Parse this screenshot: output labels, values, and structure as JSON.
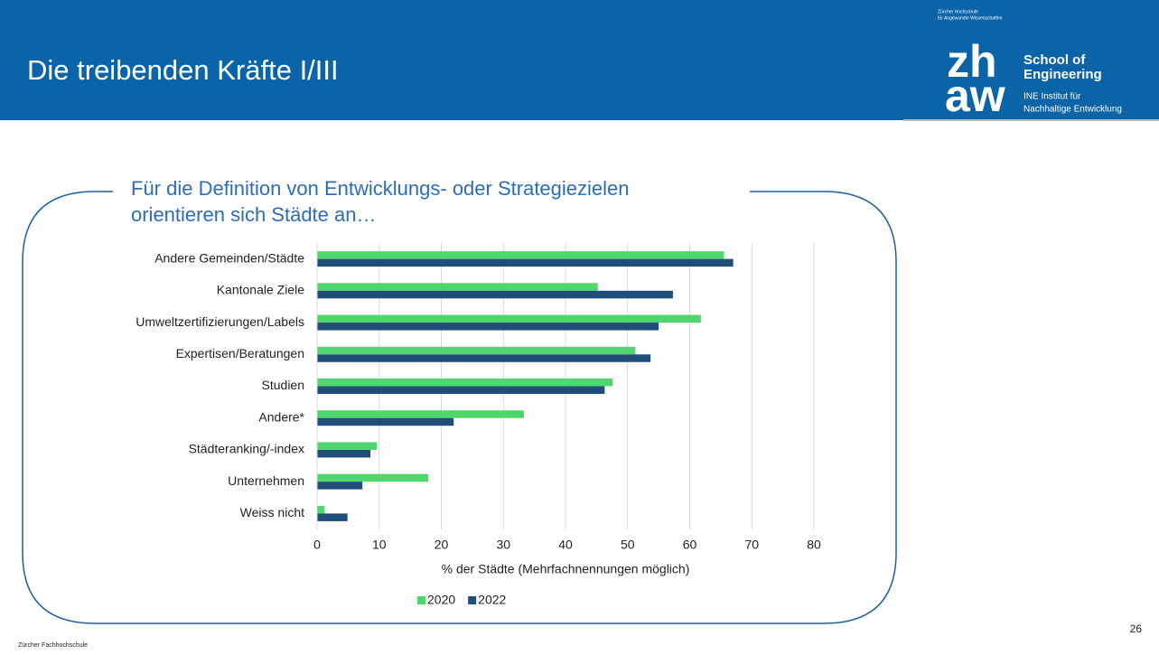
{
  "header": {
    "title": "Die treibenden Kräfte I/III",
    "institution": [
      "Zürcher Hochschule",
      "für Angewandte Wissenschaften"
    ],
    "logo": [
      "zh",
      "aw"
    ],
    "school": [
      "School of",
      "Engineering"
    ],
    "institute": [
      "INE Institut für",
      "Nachhaltige Entwicklung"
    ]
  },
  "footer": {
    "text": "Zürcher Fachhochschule",
    "page": 26
  },
  "chart_data": {
    "type": "bar",
    "orientation": "horizontal",
    "title": [
      "Für die Definition von Entwicklungs- oder Strategiezielen",
      "orientieren sich Städte an…"
    ],
    "categories": [
      "Andere Gemeinden/Städte",
      "Kantonale Ziele",
      "Umweltzertifizierungen/Labels",
      "Expertisen/Beratungen",
      "Studien",
      "Andere*",
      "Städteranking/-index",
      "Unternehmen",
      "Weiss nicht"
    ],
    "series": [
      {
        "name": "2020",
        "color": "#4fd66c",
        "values": [
          65.5,
          45.2,
          61.8,
          51.2,
          47.6,
          33.3,
          9.6,
          17.9,
          1.2
        ]
      },
      {
        "name": "2022",
        "color": "#1f4e79",
        "values": [
          67,
          57.3,
          55,
          53.7,
          46.3,
          22,
          8.6,
          7.3,
          4.9
        ]
      }
    ],
    "xlabel": "% der Städte (Mehrfachnennungen möglich)",
    "xlim": [
      0,
      80
    ],
    "xticks": [
      0,
      10,
      20,
      30,
      40,
      50,
      60,
      70,
      80
    ],
    "grid": true,
    "legend": "bottom"
  }
}
